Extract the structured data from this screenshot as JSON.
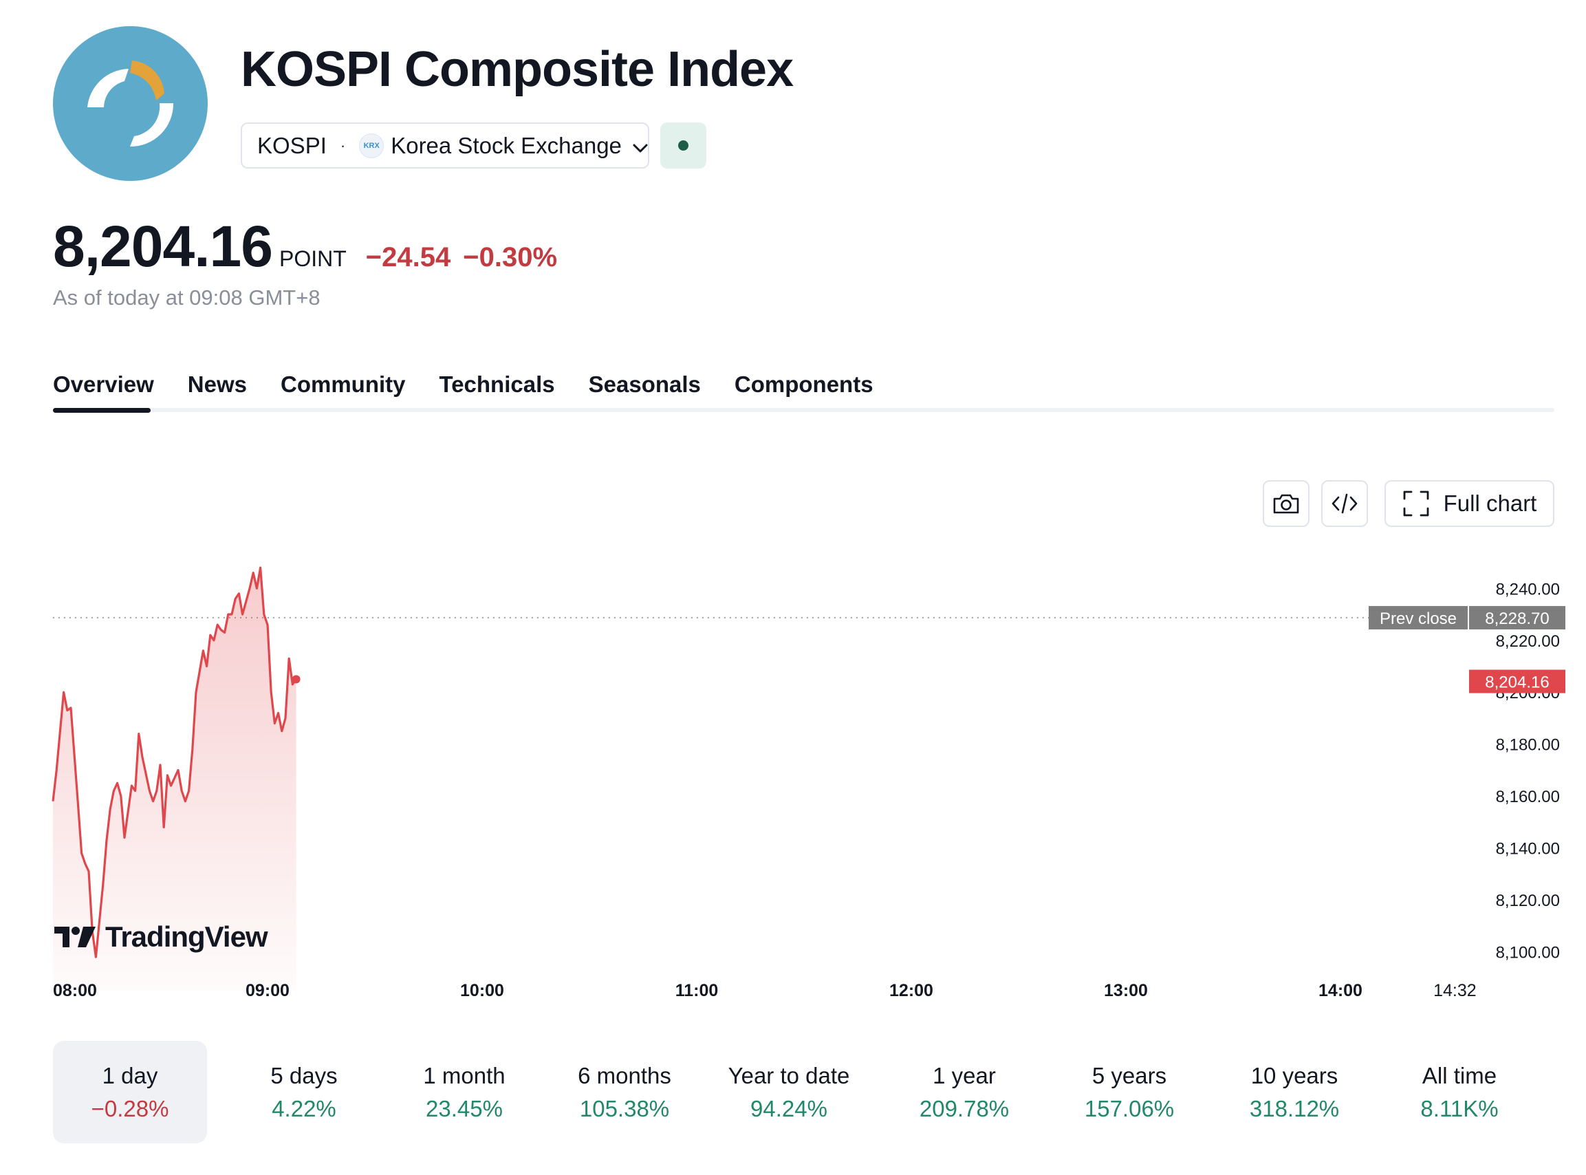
{
  "header": {
    "title": "KOSPI Composite Index",
    "symbol": "KOSPI",
    "separator": "·",
    "exchange_icon_text": "KRX",
    "exchange": "Korea Stock Exchange"
  },
  "quote": {
    "price": "8,204.16",
    "unit": "POINT",
    "change": "−24.54",
    "change_pct": "−0.30%",
    "as_of": "As of today at 09:08 GMT+8"
  },
  "tabs": [
    "Overview",
    "News",
    "Community",
    "Technicals",
    "Seasonals",
    "Components"
  ],
  "toolbar": {
    "full_chart_label": "Full chart"
  },
  "branding": {
    "tradingview": "TradingView"
  },
  "colors": {
    "line": "#e0474c",
    "negative": "#c23b41",
    "positive": "#22876b",
    "prev_close_tag": "#7d7d7d",
    "last_price_tag": "#e0474c",
    "logo_bg": "#5eaacb",
    "logo_accent": "#e4a23a"
  },
  "chart_data": {
    "type": "area",
    "x_ticks": [
      "08:00",
      "09:00",
      "10:00",
      "11:00",
      "12:00",
      "13:00",
      "14:00"
    ],
    "x_end_label": "14:32",
    "y_ticks": [
      "8,240.00",
      "8,220.00",
      "8,200.00",
      "8,180.00",
      "8,160.00",
      "8,140.00",
      "8,120.00",
      "8,100.00"
    ],
    "ylim": [
      8093,
      8252
    ],
    "prev_close_label": "Prev close",
    "prev_close": 8228.7,
    "prev_close_text": "8,228.70",
    "last_price": 8204.16,
    "last_price_text": "8,204.16",
    "series": [
      {
        "x": [
          "08:00",
          "08:01",
          "08:03",
          "08:04",
          "08:05",
          "08:07",
          "08:08",
          "08:09",
          "08:10",
          "08:11",
          "08:12",
          "08:14",
          "08:15",
          "08:16",
          "08:17",
          "08:18",
          "08:19",
          "08:20",
          "08:22",
          "08:23",
          "08:24",
          "08:25",
          "08:27",
          "08:28",
          "08:29",
          "08:30",
          "08:31",
          "08:32",
          "08:33",
          "08:35",
          "08:36",
          "08:37",
          "08:38",
          "08:39",
          "08:40",
          "08:42",
          "08:43",
          "08:44",
          "08:45",
          "08:46",
          "08:47",
          "08:48",
          "08:49",
          "08:50",
          "08:51",
          "08:52",
          "08:53",
          "08:55",
          "08:56",
          "08:57",
          "08:58",
          "08:59",
          "09:00",
          "09:01",
          "09:02",
          "09:03",
          "09:04",
          "09:05",
          "09:06",
          "09:07",
          "09:08"
        ],
        "y": [
          8158,
          8170,
          8200,
          8193,
          8194,
          8157,
          8138,
          8134,
          8131,
          8108,
          8098,
          8126,
          8143,
          8155,
          8162,
          8165,
          8160,
          8144,
          8164,
          8162,
          8184,
          8175,
          8162,
          8158,
          8162,
          8172,
          8148,
          8168,
          8164,
          8170,
          8162,
          8158,
          8162,
          8178,
          8200,
          8216,
          8210,
          8222,
          8220,
          8226,
          8224,
          8223,
          8230,
          8230,
          8236,
          8238,
          8230,
          8240,
          8246,
          8240,
          8248,
          8230,
          8226,
          8200,
          8188,
          8192,
          8185,
          8190,
          8213,
          8203,
          8205
        ]
      }
    ],
    "grid": false,
    "legend": "none"
  },
  "periods": [
    {
      "label": "1 day",
      "value": "−0.28%",
      "sign": "neg"
    },
    {
      "label": "5 days",
      "value": "4.22%",
      "sign": "pos"
    },
    {
      "label": "1 month",
      "value": "23.45%",
      "sign": "pos"
    },
    {
      "label": "6 months",
      "value": "105.38%",
      "sign": "pos"
    },
    {
      "label": "Year to date",
      "value": "94.24%",
      "sign": "pos"
    },
    {
      "label": "1 year",
      "value": "209.78%",
      "sign": "pos"
    },
    {
      "label": "5 years",
      "value": "157.06%",
      "sign": "pos"
    },
    {
      "label": "10 years",
      "value": "318.12%",
      "sign": "pos"
    },
    {
      "label": "All time",
      "value": "8.11K%",
      "sign": "pos"
    }
  ]
}
